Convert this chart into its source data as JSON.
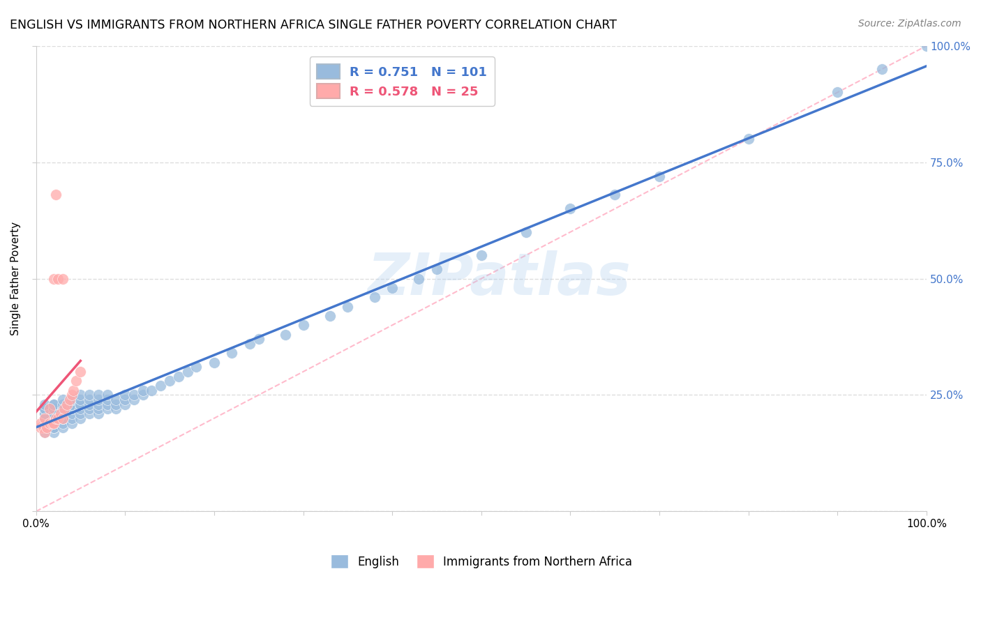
{
  "title": "ENGLISH VS IMMIGRANTS FROM NORTHERN AFRICA SINGLE FATHER POVERTY CORRELATION CHART",
  "source": "Source: ZipAtlas.com",
  "ylabel": "Single Father Poverty",
  "xlim": [
    0.0,
    1.0
  ],
  "ylim": [
    0.0,
    1.0
  ],
  "english_color": "#99BBDD",
  "immigrant_color": "#FFAAAA",
  "english_line_color": "#4477CC",
  "immigrant_line_color": "#EE5577",
  "ref_line_color": "#FFBBCC",
  "watermark_text": "ZIPatlas",
  "watermark_color": "#AACCEE",
  "legend_english_R": "0.751",
  "legend_english_N": "101",
  "legend_immigrant_R": "0.578",
  "legend_immigrant_N": "25",
  "background_color": "#FFFFFF",
  "grid_color": "#DDDDDD",
  "ytick_label_color": "#4477CC",
  "title_fontsize": 12.5,
  "axis_label_fontsize": 11,
  "tick_fontsize": 11,
  "legend_fontsize": 13,
  "english_x": [
    0.01,
    0.01,
    0.01,
    0.01,
    0.01,
    0.01,
    0.01,
    0.01,
    0.01,
    0.01,
    0.01,
    0.01,
    0.01,
    0.02,
    0.02,
    0.02,
    0.02,
    0.02,
    0.02,
    0.02,
    0.02,
    0.02,
    0.02,
    0.02,
    0.02,
    0.03,
    0.03,
    0.03,
    0.03,
    0.03,
    0.03,
    0.03,
    0.03,
    0.03,
    0.03,
    0.04,
    0.04,
    0.04,
    0.04,
    0.04,
    0.04,
    0.04,
    0.04,
    0.05,
    0.05,
    0.05,
    0.05,
    0.05,
    0.05,
    0.05,
    0.06,
    0.06,
    0.06,
    0.06,
    0.06,
    0.07,
    0.07,
    0.07,
    0.07,
    0.07,
    0.08,
    0.08,
    0.08,
    0.08,
    0.09,
    0.09,
    0.09,
    0.1,
    0.1,
    0.1,
    0.11,
    0.11,
    0.12,
    0.12,
    0.13,
    0.14,
    0.15,
    0.16,
    0.17,
    0.18,
    0.2,
    0.22,
    0.24,
    0.25,
    0.28,
    0.3,
    0.33,
    0.35,
    0.38,
    0.4,
    0.43,
    0.45,
    0.5,
    0.55,
    0.6,
    0.65,
    0.7,
    0.8,
    0.9,
    0.95,
    1.0
  ],
  "english_y": [
    0.17,
    0.18,
    0.18,
    0.19,
    0.19,
    0.2,
    0.2,
    0.2,
    0.21,
    0.21,
    0.22,
    0.22,
    0.23,
    0.17,
    0.18,
    0.18,
    0.19,
    0.2,
    0.2,
    0.21,
    0.21,
    0.22,
    0.22,
    0.23,
    0.23,
    0.18,
    0.19,
    0.2,
    0.2,
    0.21,
    0.21,
    0.22,
    0.22,
    0.23,
    0.24,
    0.19,
    0.2,
    0.21,
    0.22,
    0.23,
    0.23,
    0.24,
    0.24,
    0.2,
    0.21,
    0.22,
    0.23,
    0.23,
    0.24,
    0.25,
    0.21,
    0.22,
    0.23,
    0.24,
    0.25,
    0.21,
    0.22,
    0.23,
    0.24,
    0.25,
    0.22,
    0.23,
    0.24,
    0.25,
    0.22,
    0.23,
    0.24,
    0.23,
    0.24,
    0.25,
    0.24,
    0.25,
    0.25,
    0.26,
    0.26,
    0.27,
    0.28,
    0.29,
    0.3,
    0.31,
    0.32,
    0.34,
    0.36,
    0.37,
    0.38,
    0.4,
    0.42,
    0.44,
    0.46,
    0.48,
    0.5,
    0.52,
    0.55,
    0.6,
    0.65,
    0.68,
    0.72,
    0.8,
    0.9,
    0.95,
    1.0
  ],
  "immigrant_x": [
    0.005,
    0.005,
    0.008,
    0.01,
    0.01,
    0.012,
    0.015,
    0.015,
    0.018,
    0.02,
    0.02,
    0.022,
    0.022,
    0.025,
    0.025,
    0.028,
    0.03,
    0.03,
    0.032,
    0.035,
    0.038,
    0.04,
    0.042,
    0.045,
    0.05
  ],
  "immigrant_y": [
    0.18,
    0.19,
    0.18,
    0.17,
    0.2,
    0.18,
    0.19,
    0.22,
    0.19,
    0.19,
    0.5,
    0.2,
    0.68,
    0.2,
    0.5,
    0.21,
    0.2,
    0.5,
    0.22,
    0.23,
    0.24,
    0.25,
    0.26,
    0.28,
    0.3
  ]
}
